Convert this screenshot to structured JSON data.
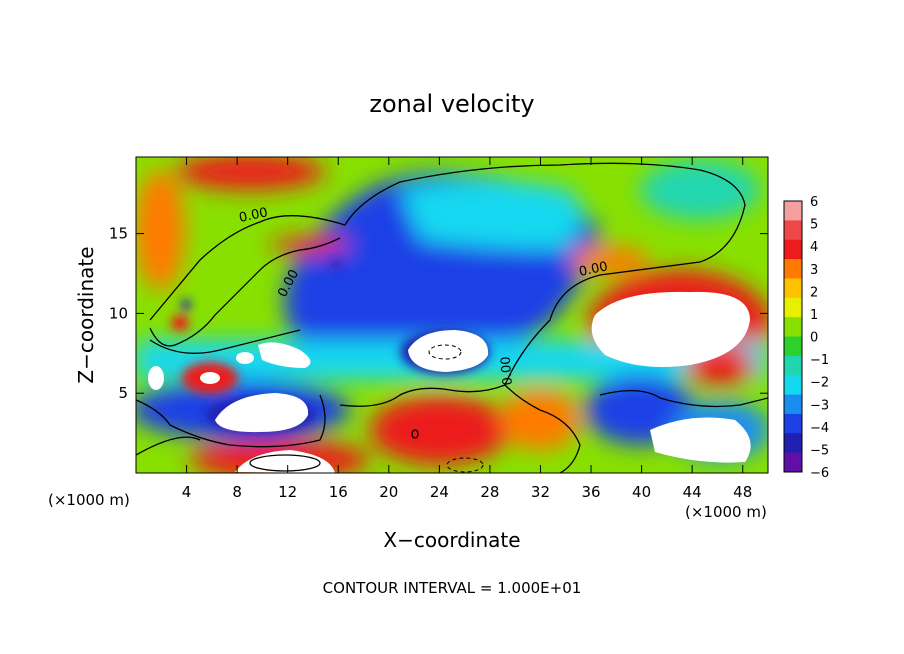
{
  "chart_data": {
    "type": "heatmap",
    "title": "zonal velocity",
    "xlabel": "X−coordinate",
    "ylabel": "Z−coordinate",
    "x_unit": "(×1000 m)",
    "y_unit": "(×1000 m)",
    "xlim": [
      0,
      50
    ],
    "ylim": [
      0,
      19.8
    ],
    "x_ticks": [
      4,
      8,
      12,
      16,
      20,
      24,
      28,
      32,
      36,
      40,
      44,
      48
    ],
    "y_ticks": [
      5,
      10,
      15
    ],
    "colorbar": {
      "levels": [
        6,
        5,
        4,
        3,
        2,
        1,
        0,
        -1,
        -2,
        -3,
        -4,
        -5,
        -6
      ],
      "colors": [
        "#f5a0a0",
        "#f04848",
        "#ec1c1c",
        "#ff7a00",
        "#ffc000",
        "#e6f000",
        "#88e000",
        "#2ed02e",
        "#20d6b0",
        "#12d8f0",
        "#1a8ef0",
        "#1c40e6",
        "#2020b0",
        "#6010a8"
      ]
    },
    "contour_label": "0.00",
    "contour_interval_text": "CONTOUR INTERVAL = 1.000E+01"
  }
}
